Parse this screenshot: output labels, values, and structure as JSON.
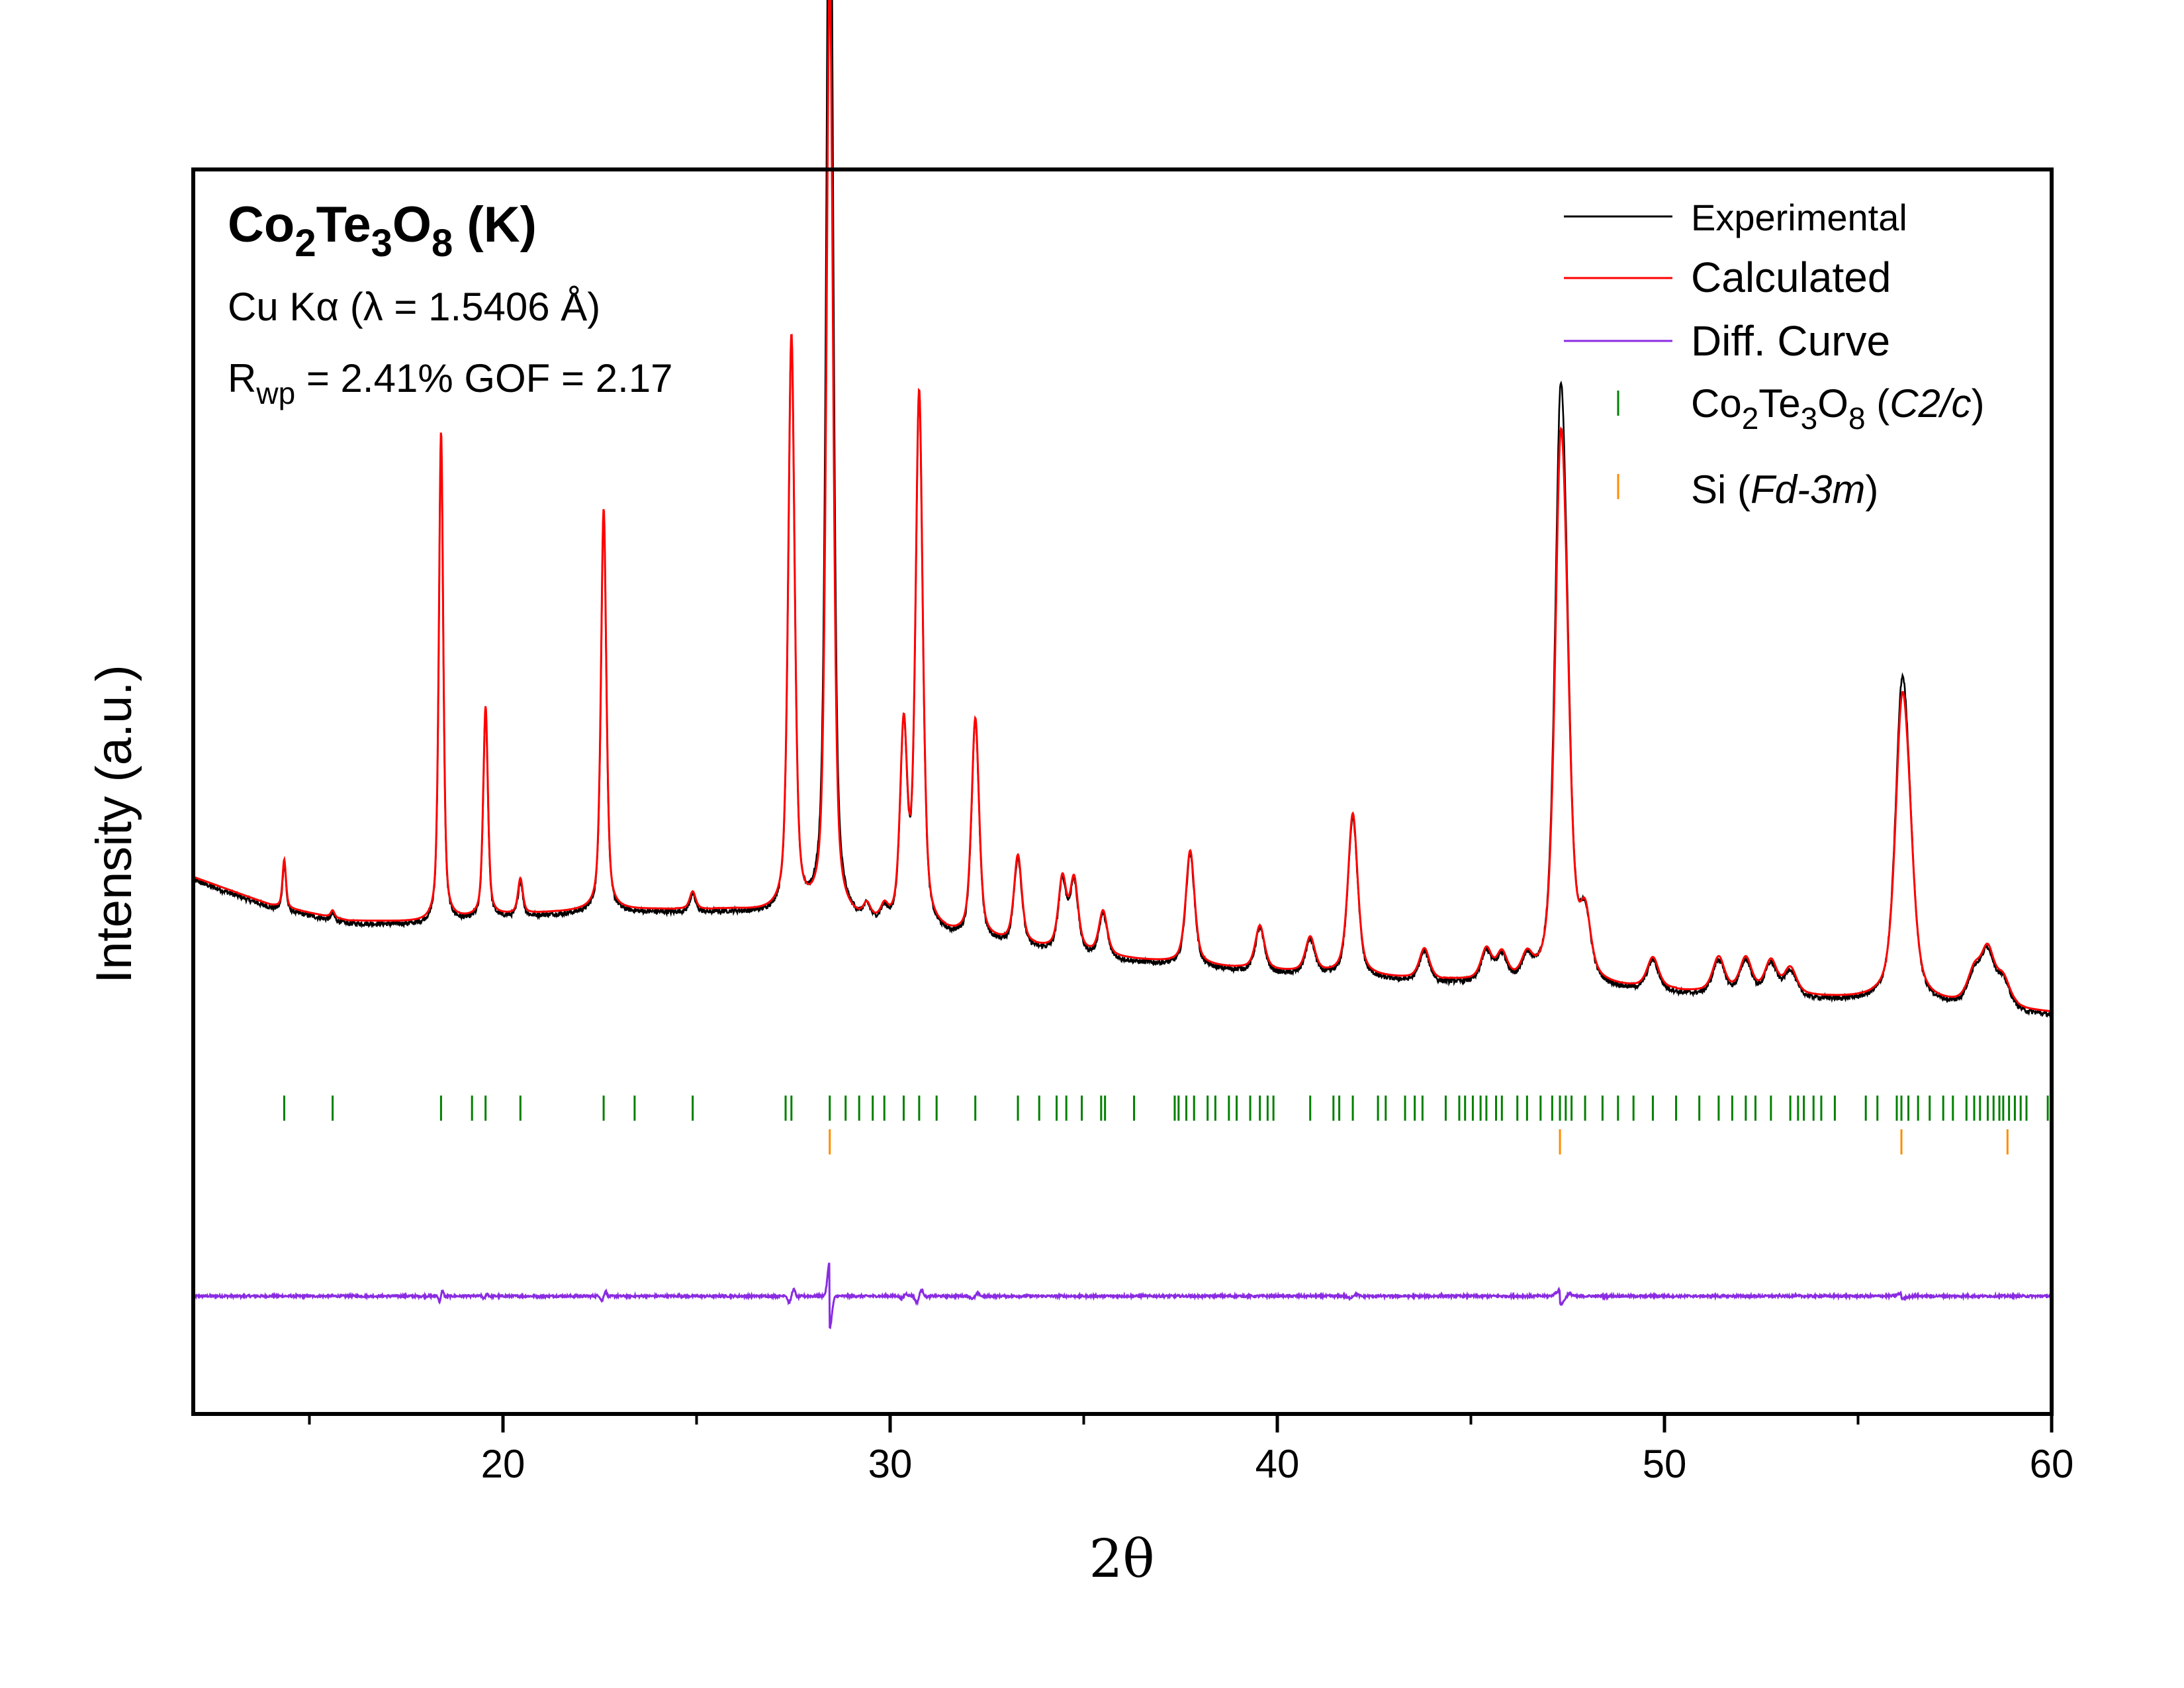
{
  "colors": {
    "experimental": "#000000",
    "calculated": "#ff0000",
    "difference": "#8a2be2",
    "phase_main": "#008000",
    "phase_si": "#ff8c00",
    "axis": "#000000"
  },
  "annotation": {
    "formula": {
      "el1": "Co",
      "sub1": "2",
      "el2": "Te",
      "sub2": "3",
      "el3": "O",
      "sub3": "8",
      "suffix": " (K)"
    },
    "radiation": "Cu Kα (λ = 1.5406 Å)",
    "rwp_symbol": "R",
    "rwp_sub": "wp",
    "rwp_text": " = 2.41%  GOF = 2.17"
  },
  "legend": {
    "experimental": "Experimental",
    "calculated": "Calculated",
    "difference": "Diff. Curve",
    "phase1": {
      "el1": "Co",
      "sub1": "2",
      "el2": "Te",
      "sub2": "3",
      "el3": "O",
      "sub3": "8",
      "space_group": "C2/c"
    },
    "phase2": {
      "name": "Si",
      "space_group": "Fd-3m"
    }
  },
  "chart_data": {
    "type": "line",
    "xlabel": "2θ",
    "ylabel": "Intensity (a.u.)",
    "xlim": [
      12,
      60
    ],
    "x_ticks": [
      20,
      30,
      40,
      50,
      60
    ],
    "x_minor_ticks": [
      15,
      25,
      35,
      45,
      55
    ],
    "y_ticks_shown": false,
    "background": {
      "x": [
        12,
        14,
        16,
        18,
        20,
        22,
        24,
        26,
        28,
        30,
        32,
        34,
        36,
        38,
        40,
        42,
        44,
        46,
        48,
        50,
        52,
        54,
        56,
        58,
        60
      ],
      "y": [
        22.0,
        18.8,
        17.0,
        16.8,
        17.6,
        18.1,
        18.3,
        18.2,
        17.3,
        16.2,
        15.0,
        13.8,
        12.7,
        11.9,
        11.2,
        10.7,
        10.2,
        9.8,
        9.4,
        9.0,
        8.6,
        8.2,
        7.8,
        7.1,
        6.5
      ]
    },
    "peaks": [
      {
        "pos": 14.35,
        "height": 5.5
      },
      {
        "pos": 15.6,
        "height": 0.8
      },
      {
        "pos": 18.4,
        "height": 56.0
      },
      {
        "pos": 19.55,
        "height": 24.0
      },
      {
        "pos": 20.45,
        "height": 4.0
      },
      {
        "pos": 22.6,
        "height": 46.0
      },
      {
        "pos": 24.9,
        "height": 2.0
      },
      {
        "pos": 27.45,
        "height": 66.0
      },
      {
        "pos": 28.44,
        "height": 108.0
      },
      {
        "pos": 29.4,
        "height": 1.5
      },
      {
        "pos": 29.85,
        "height": 1.5
      },
      {
        "pos": 30.35,
        "height": 22.0
      },
      {
        "pos": 30.75,
        "height": 61.0
      },
      {
        "pos": 32.2,
        "height": 25.0
      },
      {
        "pos": 33.3,
        "height": 10.0
      },
      {
        "pos": 34.45,
        "height": 8.0
      },
      {
        "pos": 34.75,
        "height": 8.0
      },
      {
        "pos": 35.5,
        "height": 5.0
      },
      {
        "pos": 37.75,
        "height": 13.0
      },
      {
        "pos": 39.55,
        "height": 5.0
      },
      {
        "pos": 40.85,
        "height": 4.0
      },
      {
        "pos": 41.95,
        "height": 18.5
      },
      {
        "pos": 43.8,
        "height": 3.5
      },
      {
        "pos": 45.4,
        "height": 3.5
      },
      {
        "pos": 45.8,
        "height": 3.0
      },
      {
        "pos": 46.45,
        "height": 2.5
      },
      {
        "pos": 47.3,
        "height": 49.0
      },
      {
        "pos": 47.45,
        "height": 23.0
      },
      {
        "pos": 47.95,
        "height": 7.0
      },
      {
        "pos": 49.7,
        "height": 3.5
      },
      {
        "pos": 51.4,
        "height": 4.0
      },
      {
        "pos": 52.1,
        "height": 4.0
      },
      {
        "pos": 52.75,
        "height": 3.8
      },
      {
        "pos": 53.25,
        "height": 3.0
      },
      {
        "pos": 56.12,
        "height": 28.0
      },
      {
        "pos": 56.3,
        "height": 12.0
      },
      {
        "pos": 58.0,
        "height": 3.5
      },
      {
        "pos": 58.35,
        "height": 6.0
      },
      {
        "pos": 58.75,
        "height": 3.0
      }
    ],
    "experimental_peak_scale": [
      {
        "pos": 28.44,
        "factor": 1.28
      },
      {
        "pos": 47.3,
        "factor": 1.12
      },
      {
        "pos": 56.12,
        "factor": 1.08
      }
    ],
    "bragg_main": [
      14.35,
      15.6,
      18.4,
      19.2,
      19.55,
      20.45,
      22.6,
      23.4,
      24.9,
      27.3,
      27.45,
      28.44,
      28.85,
      29.2,
      29.55,
      29.85,
      30.35,
      30.75,
      31.2,
      32.2,
      33.3,
      33.85,
      34.3,
      34.55,
      34.95,
      35.45,
      35.55,
      36.3,
      37.35,
      37.45,
      37.65,
      37.85,
      38.2,
      38.4,
      38.75,
      38.95,
      39.3,
      39.55,
      39.75,
      39.9,
      40.85,
      41.45,
      41.6,
      41.95,
      42.6,
      42.8,
      43.3,
      43.55,
      43.75,
      44.35,
      44.7,
      44.85,
      45.05,
      45.25,
      45.4,
      45.65,
      45.8,
      46.2,
      46.45,
      46.8,
      47.1,
      47.3,
      47.45,
      47.6,
      47.95,
      48.4,
      48.8,
      49.2,
      49.7,
      50.3,
      50.9,
      51.4,
      51.75,
      52.1,
      52.35,
      52.75,
      53.25,
      53.45,
      53.6,
      53.85,
      54.05,
      54.4,
      55.2,
      55.5,
      56.0,
      56.12,
      56.3,
      56.55,
      56.85,
      57.2,
      57.45,
      57.8,
      58.0,
      58.15,
      58.35,
      58.5,
      58.65,
      58.75,
      58.9,
      59.05,
      59.2,
      59.35,
      59.9
    ],
    "bragg_si": [
      28.44,
      47.3,
      56.12,
      58.86
    ],
    "series": [
      {
        "name": "Experimental"
      },
      {
        "name": "Calculated"
      },
      {
        "name": "Diff. Curve"
      }
    ]
  }
}
